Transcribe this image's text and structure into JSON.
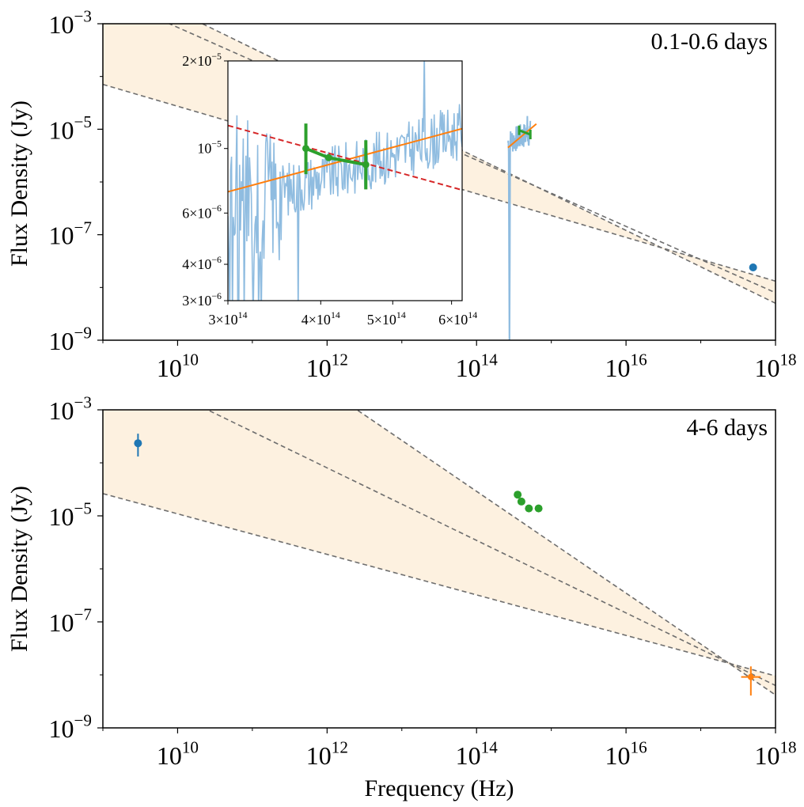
{
  "chart_data": [
    {
      "type": "scatter",
      "panel": "top",
      "annotation": "0.1-0.6 days",
      "ylabel": "Flux Density (Jy)",
      "xlabel": "",
      "xscale": "log",
      "yscale": "log",
      "xlim_log10": [
        9,
        18
      ],
      "ylim_log10": [
        -9,
        -3
      ],
      "xticks": [
        {
          "base": "10",
          "exp": "10"
        },
        {
          "base": "10",
          "exp": "12"
        },
        {
          "base": "10",
          "exp": "14"
        },
        {
          "base": "10",
          "exp": "16"
        },
        {
          "base": "10",
          "exp": "18"
        }
      ],
      "yticks": [
        {
          "base": "10",
          "exp": "−3"
        },
        {
          "base": "10",
          "exp": "−5"
        },
        {
          "base": "10",
          "exp": "−7"
        },
        {
          "base": "10",
          "exp": "−9"
        }
      ],
      "model_lines_log10": [
        [
          [
            9,
            -2.08
          ],
          [
            18,
            -8.3
          ]
        ],
        [
          [
            9,
            -2.44
          ],
          [
            18,
            -8.1
          ]
        ],
        [
          [
            9,
            -4.15
          ],
          [
            18,
            -7.88
          ]
        ]
      ],
      "band_color": "#fdf1e0",
      "xray_point": {
        "log10_x": 17.7,
        "log10_y": -7.62,
        "color": "#1f77b4"
      },
      "optical_spectrum_fit": {
        "log10_x": [
          14.42,
          14.8
        ],
        "log10_y": [
          -5.35,
          -4.9
        ],
        "color": "#ff7f0e"
      },
      "optical_points": {
        "log10_x": [
          14.57,
          14.72
        ],
        "log10_y": [
          -5.02,
          -5.1
        ],
        "color": "#2ca02c"
      },
      "spectrum_color": "#8fbce0",
      "inset": {
        "xticks": [
          {
            "mant": "3",
            "exp": "14"
          },
          {
            "mant": "4",
            "exp": "14"
          },
          {
            "mant": "5",
            "exp": "14"
          },
          {
            "mant": "6",
            "exp": "14"
          }
        ],
        "yticks": [
          {
            "mant": "2",
            "exp": "−5"
          },
          {
            "mant": "",
            "exp": "−5"
          },
          {
            "mant": "6",
            "exp": "−6"
          },
          {
            "mant": "4",
            "exp": "−6"
          },
          {
            "mant": "3",
            "exp": "−6"
          }
        ],
        "xlim": [
          300000000000000.0,
          620000000000000.0
        ],
        "ylim": [
          3e-06,
          2e-05
        ],
        "fit_line": {
          "x": [
            300000000000000.0,
            620000000000000.0
          ],
          "y": [
            7.1e-06,
            1.17e-05
          ],
          "color": "#ff7f0e"
        },
        "dashed_line": {
          "x": [
            300000000000000.0,
            620000000000000.0
          ],
          "y": [
            1.2e-05,
            7.2e-06
          ],
          "color": "#d62728"
        },
        "points": {
          "x": [
            382000000000000.0,
            410000000000000.0,
            460000000000000.0
          ],
          "y": [
            1e-05,
            9.3e-06,
            8.8e-06
          ],
          "yerr_up": [
            1.3e-06,
            0,
            1.1e-06
          ],
          "yerr_dn": [
            1.2e-06,
            0,
            1e-06
          ],
          "color": "#2ca02c"
        }
      }
    },
    {
      "type": "scatter",
      "panel": "bottom",
      "annotation": "4-6 days",
      "ylabel": "Flux Density (Jy)",
      "xlabel": "Frequency (Hz)",
      "xscale": "log",
      "yscale": "log",
      "xlim_log10": [
        9,
        18
      ],
      "ylim_log10": [
        -9,
        -3
      ],
      "xticks": [
        {
          "base": "10",
          "exp": "10"
        },
        {
          "base": "10",
          "exp": "12"
        },
        {
          "base": "10",
          "exp": "14"
        },
        {
          "base": "10",
          "exp": "16"
        },
        {
          "base": "10",
          "exp": "18"
        }
      ],
      "yticks": [
        {
          "base": "10",
          "exp": "−3"
        },
        {
          "base": "10",
          "exp": "−5"
        },
        {
          "base": "10",
          "exp": "−7"
        },
        {
          "base": "10",
          "exp": "−9"
        }
      ],
      "model_lines_log10": [
        [
          [
            12.4,
            -3.0
          ],
          [
            18,
            -8.38
          ]
        ],
        [
          [
            10.4,
            -3.0
          ],
          [
            18,
            -8.2
          ]
        ],
        [
          [
            9,
            -4.58
          ],
          [
            18,
            -8.02
          ]
        ]
      ],
      "band_color": "#fdf1e0",
      "radio_point": {
        "log10_x": 9.47,
        "log10_y": -3.63,
        "err_up": 0.18,
        "err_dn": 0.25,
        "color": "#1f77b4"
      },
      "optical_points": {
        "log10_x": [
          14.55,
          14.6,
          14.7,
          14.83
        ],
        "log10_y": [
          -4.6,
          -4.73,
          -4.86,
          -4.86
        ],
        "color": "#2ca02c"
      },
      "xray_point": {
        "log10_x": 17.67,
        "log10_y": -8.04,
        "err_up": 0.2,
        "err_dn": 0.35,
        "xerr": 0.13,
        "color": "#ff7f0e"
      }
    }
  ]
}
